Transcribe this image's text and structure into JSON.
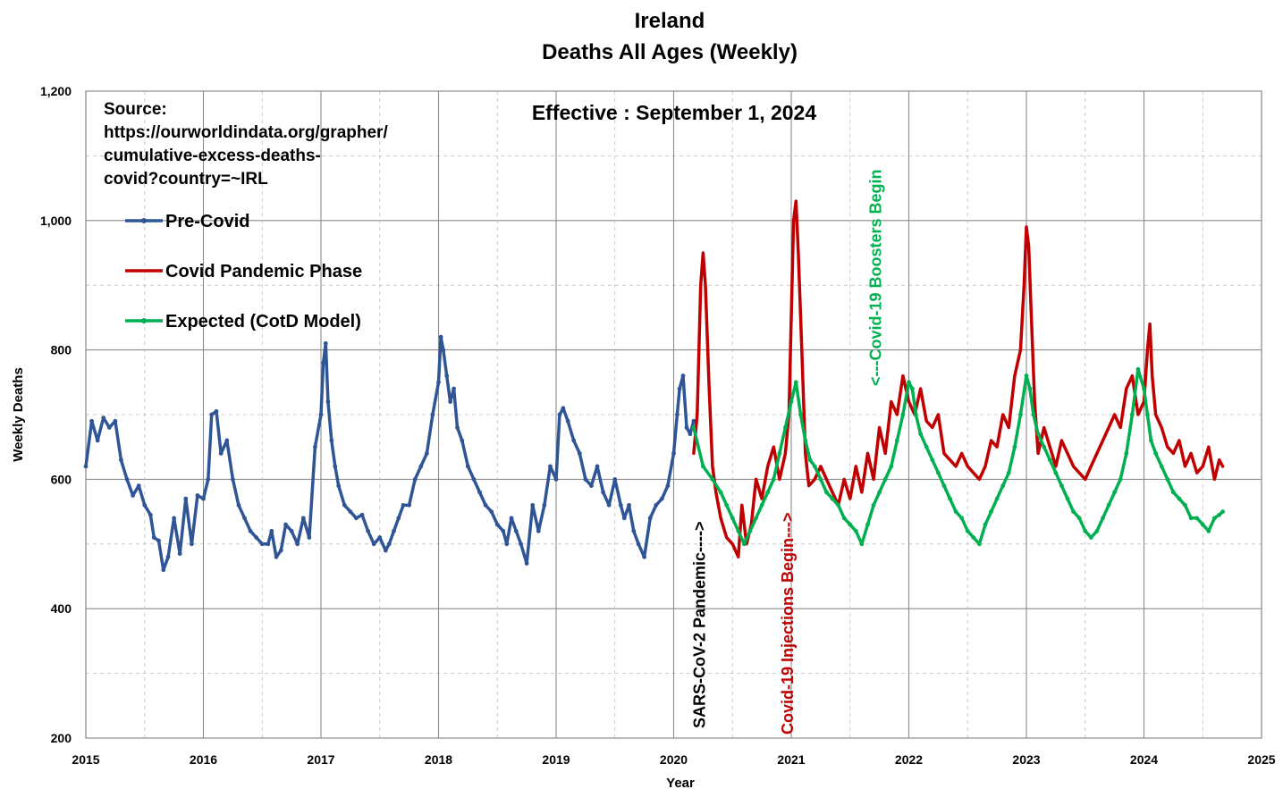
{
  "chart_data": {
    "type": "line",
    "title": "Ireland",
    "subtitle": "Deaths All Ages (Weekly)",
    "annotation": "Effective : September 1, 2024",
    "xlabel": "Year",
    "ylabel": "Weekly Deaths",
    "xlim": [
      2015,
      2025
    ],
    "ylim": [
      200,
      1200
    ],
    "x_ticks": [
      "2015",
      "2016",
      "2017",
      "2018",
      "2019",
      "2020",
      "2021",
      "2022",
      "2023",
      "2024",
      "2025"
    ],
    "y_ticks": [
      "200",
      "400",
      "600",
      "800",
      "1,000",
      "1,200"
    ],
    "grid": true,
    "legend_position": "top-left",
    "source_lines": [
      "Source:",
      "https://ourworldindata.org/grapher/",
      "cumulative-excess-deaths-",
      "covid?country=~IRL"
    ],
    "vertical_annotations": [
      {
        "text": "SARS-CoV-2 Pandemic---->",
        "x": 2020.22,
        "color": "#000000"
      },
      {
        "text": "Covid-19 Injections Begin--->",
        "x": 2020.97,
        "color": "#c00000"
      },
      {
        "text": "<---Covid-19 Boosters Begin",
        "x": 2021.72,
        "color": "#00b050"
      }
    ],
    "series": [
      {
        "name": "Pre-Covid",
        "color": "#2f5597",
        "marker": true,
        "x": [
          2015.0,
          2015.05,
          2015.1,
          2015.15,
          2015.2,
          2015.25,
          2015.3,
          2015.35,
          2015.4,
          2015.45,
          2015.5,
          2015.55,
          2015.58,
          2015.62,
          2015.66,
          2015.7,
          2015.75,
          2015.8,
          2015.85,
          2015.9,
          2015.95,
          2016.0,
          2016.04,
          2016.07,
          2016.11,
          2016.15,
          2016.2,
          2016.25,
          2016.3,
          2016.35,
          2016.4,
          2016.45,
          2016.5,
          2016.55,
          2016.58,
          2016.62,
          2016.66,
          2016.7,
          2016.75,
          2016.8,
          2016.85,
          2016.9,
          2016.95,
          2017.0,
          2017.02,
          2017.04,
          2017.06,
          2017.09,
          2017.12,
          2017.15,
          2017.2,
          2017.25,
          2017.3,
          2017.35,
          2017.4,
          2017.45,
          2017.5,
          2017.55,
          2017.58,
          2017.62,
          2017.66,
          2017.7,
          2017.75,
          2017.8,
          2017.85,
          2017.9,
          2017.95,
          2018.0,
          2018.02,
          2018.04,
          2018.07,
          2018.1,
          2018.13,
          2018.16,
          2018.2,
          2018.25,
          2018.3,
          2018.35,
          2018.4,
          2018.45,
          2018.5,
          2018.55,
          2018.58,
          2018.62,
          2018.66,
          2018.7,
          2018.75,
          2018.8,
          2018.85,
          2018.9,
          2018.95,
          2019.0,
          2019.03,
          2019.06,
          2019.1,
          2019.15,
          2019.2,
          2019.25,
          2019.3,
          2019.35,
          2019.4,
          2019.45,
          2019.5,
          2019.55,
          2019.58,
          2019.62,
          2019.66,
          2019.7,
          2019.75,
          2019.8,
          2019.85,
          2019.9,
          2019.95,
          2020.0,
          2020.03,
          2020.05,
          2020.08,
          2020.11,
          2020.14,
          2020.17
        ],
        "y": [
          620,
          690,
          660,
          695,
          680,
          690,
          630,
          600,
          575,
          590,
          560,
          545,
          510,
          505,
          460,
          480,
          540,
          485,
          570,
          500,
          575,
          570,
          600,
          700,
          705,
          640,
          660,
          600,
          560,
          540,
          520,
          510,
          500,
          500,
          520,
          480,
          490,
          530,
          520,
          500,
          540,
          510,
          650,
          700,
          780,
          810,
          720,
          660,
          620,
          590,
          560,
          550,
          540,
          545,
          520,
          500,
          510,
          490,
          500,
          520,
          540,
          560,
          560,
          600,
          620,
          640,
          700,
          750,
          820,
          800,
          760,
          720,
          740,
          680,
          660,
          620,
          600,
          580,
          560,
          550,
          530,
          520,
          500,
          540,
          520,
          500,
          470,
          560,
          520,
          560,
          620,
          600,
          700,
          710,
          690,
          660,
          640,
          600,
          590,
          620,
          580,
          560,
          600,
          560,
          540,
          560,
          520,
          500,
          480,
          540,
          560,
          570,
          590,
          640,
          700,
          740,
          760,
          680,
          670,
          690
        ]
      },
      {
        "name": "Covid Pandemic Phase",
        "color": "#c00000",
        "marker": false,
        "x": [
          2020.17,
          2020.2,
          2020.23,
          2020.25,
          2020.27,
          2020.3,
          2020.33,
          2020.36,
          2020.4,
          2020.45,
          2020.5,
          2020.55,
          2020.58,
          2020.62,
          2020.66,
          2020.7,
          2020.75,
          2020.8,
          2020.85,
          2020.9,
          2020.95,
          2020.98,
          2021.0,
          2021.02,
          2021.04,
          2021.06,
          2021.09,
          2021.12,
          2021.15,
          2021.2,
          2021.25,
          2021.3,
          2021.35,
          2021.4,
          2021.45,
          2021.5,
          2021.55,
          2021.6,
          2021.65,
          2021.7,
          2021.75,
          2021.8,
          2021.85,
          2021.9,
          2021.95,
          2022.0,
          2022.05,
          2022.1,
          2022.15,
          2022.2,
          2022.25,
          2022.3,
          2022.35,
          2022.4,
          2022.45,
          2022.5,
          2022.55,
          2022.6,
          2022.65,
          2022.7,
          2022.75,
          2022.8,
          2022.85,
          2022.9,
          2022.95,
          2022.98,
          2023.0,
          2023.02,
          2023.04,
          2023.07,
          2023.1,
          2023.15,
          2023.2,
          2023.25,
          2023.3,
          2023.35,
          2023.4,
          2023.45,
          2023.5,
          2023.55,
          2023.6,
          2023.65,
          2023.7,
          2023.75,
          2023.8,
          2023.85,
          2023.9,
          2023.95,
          2024.0,
          2024.03,
          2024.05,
          2024.07,
          2024.1,
          2024.15,
          2024.2,
          2024.25,
          2024.3,
          2024.35,
          2024.4,
          2024.45,
          2024.5,
          2024.55,
          2024.6,
          2024.64,
          2024.67
        ],
        "y": [
          640,
          700,
          900,
          950,
          900,
          750,
          620,
          580,
          540,
          510,
          500,
          480,
          560,
          500,
          530,
          600,
          570,
          620,
          650,
          600,
          640,
          700,
          850,
          1000,
          1030,
          950,
          800,
          640,
          590,
          600,
          620,
          600,
          580,
          560,
          600,
          570,
          620,
          580,
          640,
          600,
          680,
          640,
          720,
          700,
          760,
          720,
          700,
          740,
          690,
          680,
          700,
          640,
          630,
          620,
          640,
          620,
          610,
          600,
          620,
          660,
          650,
          700,
          680,
          760,
          800,
          900,
          990,
          960,
          860,
          720,
          640,
          680,
          650,
          620,
          660,
          640,
          620,
          610,
          600,
          620,
          640,
          660,
          680,
          700,
          680,
          740,
          760,
          700,
          720,
          800,
          840,
          760,
          700,
          680,
          650,
          640,
          660,
          620,
          640,
          610,
          620,
          650,
          600,
          630,
          620
        ]
      },
      {
        "name": "Expected (CotD Model)",
        "color": "#00b050",
        "marker": true,
        "x": [
          2020.17,
          2020.25,
          2020.33,
          2020.4,
          2020.45,
          2020.5,
          2020.55,
          2020.6,
          2020.65,
          2020.7,
          2020.75,
          2020.8,
          2020.85,
          2020.9,
          2020.95,
          2021.0,
          2021.04,
          2021.08,
          2021.12,
          2021.16,
          2021.2,
          2021.25,
          2021.3,
          2021.35,
          2021.4,
          2021.45,
          2021.5,
          2021.55,
          2021.6,
          2021.65,
          2021.7,
          2021.75,
          2021.8,
          2021.85,
          2021.9,
          2021.95,
          2022.0,
          2022.03,
          2022.06,
          2022.1,
          2022.15,
          2022.2,
          2022.25,
          2022.3,
          2022.35,
          2022.4,
          2022.45,
          2022.5,
          2022.55,
          2022.6,
          2022.65,
          2022.7,
          2022.75,
          2022.8,
          2022.85,
          2022.9,
          2022.95,
          2023.0,
          2023.03,
          2023.06,
          2023.1,
          2023.15,
          2023.2,
          2023.25,
          2023.3,
          2023.35,
          2023.4,
          2023.45,
          2023.5,
          2023.55,
          2023.6,
          2023.65,
          2023.7,
          2023.75,
          2023.8,
          2023.85,
          2023.9,
          2023.95,
          2024.0,
          2024.03,
          2024.06,
          2024.1,
          2024.15,
          2024.2,
          2024.25,
          2024.3,
          2024.35,
          2024.4,
          2024.45,
          2024.5,
          2024.55,
          2024.6,
          2024.64,
          2024.67
        ],
        "y": [
          680,
          620,
          600,
          580,
          560,
          540,
          520,
          500,
          520,
          540,
          560,
          580,
          600,
          640,
          680,
          720,
          750,
          700,
          660,
          630,
          620,
          600,
          580,
          570,
          560,
          540,
          530,
          520,
          500,
          530,
          560,
          580,
          600,
          620,
          660,
          700,
          750,
          740,
          700,
          670,
          650,
          630,
          610,
          590,
          570,
          550,
          540,
          520,
          510,
          500,
          530,
          550,
          570,
          590,
          610,
          650,
          700,
          760,
          740,
          700,
          670,
          650,
          630,
          610,
          590,
          570,
          550,
          540,
          520,
          510,
          520,
          540,
          560,
          580,
          600,
          640,
          700,
          770,
          740,
          700,
          660,
          640,
          620,
          600,
          580,
          570,
          560,
          540,
          540,
          530,
          520,
          540,
          545,
          550
        ]
      }
    ]
  }
}
